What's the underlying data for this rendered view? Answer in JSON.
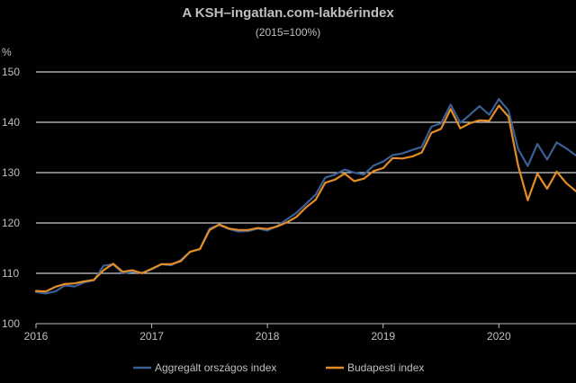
{
  "chart_data": {
    "type": "line",
    "title": "A KSH–ingatlan.com-lakbérindex",
    "subtitle": "(2015=100%)",
    "ylabel": "%",
    "ylim": [
      100,
      150
    ],
    "yticks": [
      100,
      110,
      120,
      130,
      140,
      150
    ],
    "xlim": [
      2016.0,
      2020.6667
    ],
    "xticks": [
      2016,
      2017,
      2018,
      2019,
      2020
    ],
    "xtick_labels": [
      "2016",
      "2017",
      "2018",
      "2019",
      "2020"
    ],
    "grid": true,
    "legend_position": "bottom",
    "x": [
      2016.0,
      2016.0833,
      2016.1667,
      2016.25,
      2016.3333,
      2016.4167,
      2016.5,
      2016.5833,
      2016.6667,
      2016.75,
      2016.8333,
      2016.9167,
      2017.0,
      2017.0833,
      2017.1667,
      2017.25,
      2017.3333,
      2017.4167,
      2017.5,
      2017.5833,
      2017.6667,
      2017.75,
      2017.8333,
      2017.9167,
      2018.0,
      2018.0833,
      2018.1667,
      2018.25,
      2018.3333,
      2018.4167,
      2018.5,
      2018.5833,
      2018.6667,
      2018.75,
      2018.8333,
      2018.9167,
      2019.0,
      2019.0833,
      2019.1667,
      2019.25,
      2019.3333,
      2019.4167,
      2019.5,
      2019.5833,
      2019.6667,
      2019.75,
      2019.8333,
      2019.9167,
      2020.0,
      2020.0833,
      2020.1667,
      2020.25,
      2020.3333,
      2020.4167,
      2020.5,
      2020.5833,
      2020.6667
    ],
    "series": [
      {
        "name": "Aggregált országos index",
        "color": "#3a5f94",
        "values": [
          106.3,
          106.0,
          106.4,
          107.6,
          107.4,
          108.2,
          108.6,
          111.5,
          111.8,
          110.0,
          110.3,
          110.1,
          110.8,
          111.8,
          111.6,
          112.6,
          114.3,
          114.8,
          118.9,
          119.6,
          118.8,
          118.3,
          118.4,
          118.9,
          118.5,
          119.4,
          120.7,
          122.0,
          123.8,
          125.6,
          129.0,
          129.6,
          130.6,
          130.0,
          129.6,
          131.4,
          132.2,
          133.5,
          133.8,
          134.5,
          135.1,
          139.1,
          139.8,
          143.5,
          139.9,
          141.5,
          143.2,
          141.5,
          144.6,
          142.3,
          134.7,
          131.3,
          135.7,
          132.6,
          136.0,
          134.8,
          133.4
        ]
      },
      {
        "name": "Budapesti index",
        "color": "#e38d27",
        "values": [
          106.5,
          106.4,
          107.3,
          107.9,
          108.0,
          108.4,
          108.7,
          110.6,
          111.9,
          110.3,
          110.6,
          110.0,
          110.9,
          111.8,
          111.8,
          112.4,
          114.3,
          114.8,
          118.6,
          119.7,
          118.9,
          118.6,
          118.6,
          119.0,
          118.8,
          119.3,
          120.1,
          121.2,
          123.1,
          124.6,
          128.0,
          128.6,
          129.8,
          128.3,
          128.8,
          130.3,
          130.9,
          132.9,
          132.8,
          133.2,
          134.0,
          137.9,
          138.7,
          142.6,
          138.8,
          139.8,
          140.4,
          140.3,
          143.3,
          141.1,
          131.4,
          124.5,
          129.8,
          126.8,
          130.2,
          127.9,
          126.3
        ]
      }
    ]
  }
}
